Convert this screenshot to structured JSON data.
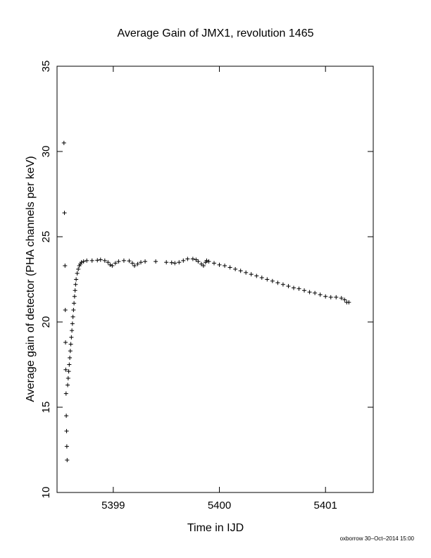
{
  "chart_data": {
    "type": "scatter",
    "title": "Average Gain of JMX1, revolution 1465",
    "xlabel": "Time in IJD",
    "ylabel": "Average gain of detector (PHA channels per keV)",
    "xlim": [
      5398.47,
      5401.45
    ],
    "ylim": [
      10,
      35
    ],
    "xticks": [
      5399,
      5400,
      5401
    ],
    "yticks": [
      10,
      15,
      20,
      25,
      30,
      35
    ],
    "marker": "plus",
    "grid": false,
    "footer": "oxborrow 30–Oct–2014 15:00",
    "series": [
      {
        "points": [
          [
            5398.535,
            30.5
          ],
          [
            5398.54,
            26.4
          ],
          [
            5398.545,
            23.3
          ],
          [
            5398.548,
            20.7
          ],
          [
            5398.55,
            18.8
          ],
          [
            5398.552,
            17.2
          ],
          [
            5398.555,
            15.8
          ],
          [
            5398.557,
            14.5
          ],
          [
            5398.56,
            13.6
          ],
          [
            5398.562,
            12.7
          ],
          [
            5398.565,
            11.9
          ],
          [
            5398.57,
            16.3
          ],
          [
            5398.575,
            16.7
          ],
          [
            5398.58,
            17.1
          ],
          [
            5398.585,
            17.5
          ],
          [
            5398.59,
            17.9
          ],
          [
            5398.595,
            18.3
          ],
          [
            5398.6,
            18.7
          ],
          [
            5398.605,
            19.1
          ],
          [
            5398.61,
            19.5
          ],
          [
            5398.615,
            19.9
          ],
          [
            5398.62,
            20.3
          ],
          [
            5398.625,
            20.7
          ],
          [
            5398.63,
            21.1
          ],
          [
            5398.635,
            21.5
          ],
          [
            5398.64,
            21.85
          ],
          [
            5398.645,
            22.2
          ],
          [
            5398.65,
            22.5
          ],
          [
            5398.66,
            22.85
          ],
          [
            5398.67,
            23.1
          ],
          [
            5398.68,
            23.3
          ],
          [
            5398.69,
            23.4
          ],
          [
            5398.7,
            23.5
          ],
          [
            5398.72,
            23.55
          ],
          [
            5398.75,
            23.6
          ],
          [
            5398.8,
            23.6
          ],
          [
            5398.85,
            23.62
          ],
          [
            5398.88,
            23.65
          ],
          [
            5398.92,
            23.6
          ],
          [
            5398.95,
            23.5
          ],
          [
            5398.97,
            23.35
          ],
          [
            5398.99,
            23.3
          ],
          [
            5399.02,
            23.45
          ],
          [
            5399.05,
            23.55
          ],
          [
            5399.1,
            23.6
          ],
          [
            5399.15,
            23.58
          ],
          [
            5399.18,
            23.45
          ],
          [
            5399.2,
            23.3
          ],
          [
            5399.23,
            23.4
          ],
          [
            5399.26,
            23.5
          ],
          [
            5399.3,
            23.55
          ],
          [
            5399.4,
            23.55
          ],
          [
            5399.5,
            23.5
          ],
          [
            5399.55,
            23.48
          ],
          [
            5399.58,
            23.45
          ],
          [
            5399.62,
            23.5
          ],
          [
            5399.66,
            23.6
          ],
          [
            5399.7,
            23.7
          ],
          [
            5399.75,
            23.7
          ],
          [
            5399.78,
            23.65
          ],
          [
            5399.8,
            23.55
          ],
          [
            5399.83,
            23.4
          ],
          [
            5399.85,
            23.3
          ],
          [
            5399.87,
            23.5
          ],
          [
            5399.88,
            23.6
          ],
          [
            5399.9,
            23.55
          ],
          [
            5399.95,
            23.45
          ],
          [
            5400.0,
            23.35
          ],
          [
            5400.05,
            23.3
          ],
          [
            5400.1,
            23.2
          ],
          [
            5400.15,
            23.1
          ],
          [
            5400.2,
            23.0
          ],
          [
            5400.25,
            22.9
          ],
          [
            5400.3,
            22.8
          ],
          [
            5400.35,
            22.7
          ],
          [
            5400.4,
            22.6
          ],
          [
            5400.45,
            22.5
          ],
          [
            5400.5,
            22.4
          ],
          [
            5400.55,
            22.3
          ],
          [
            5400.6,
            22.2
          ],
          [
            5400.65,
            22.1
          ],
          [
            5400.7,
            22.0
          ],
          [
            5400.75,
            21.95
          ],
          [
            5400.8,
            21.85
          ],
          [
            5400.85,
            21.75
          ],
          [
            5400.9,
            21.7
          ],
          [
            5400.95,
            21.6
          ],
          [
            5401.0,
            21.5
          ],
          [
            5401.05,
            21.45
          ],
          [
            5401.1,
            21.45
          ],
          [
            5401.15,
            21.4
          ],
          [
            5401.18,
            21.3
          ],
          [
            5401.2,
            21.15
          ],
          [
            5401.22,
            21.15
          ]
        ]
      }
    ]
  }
}
